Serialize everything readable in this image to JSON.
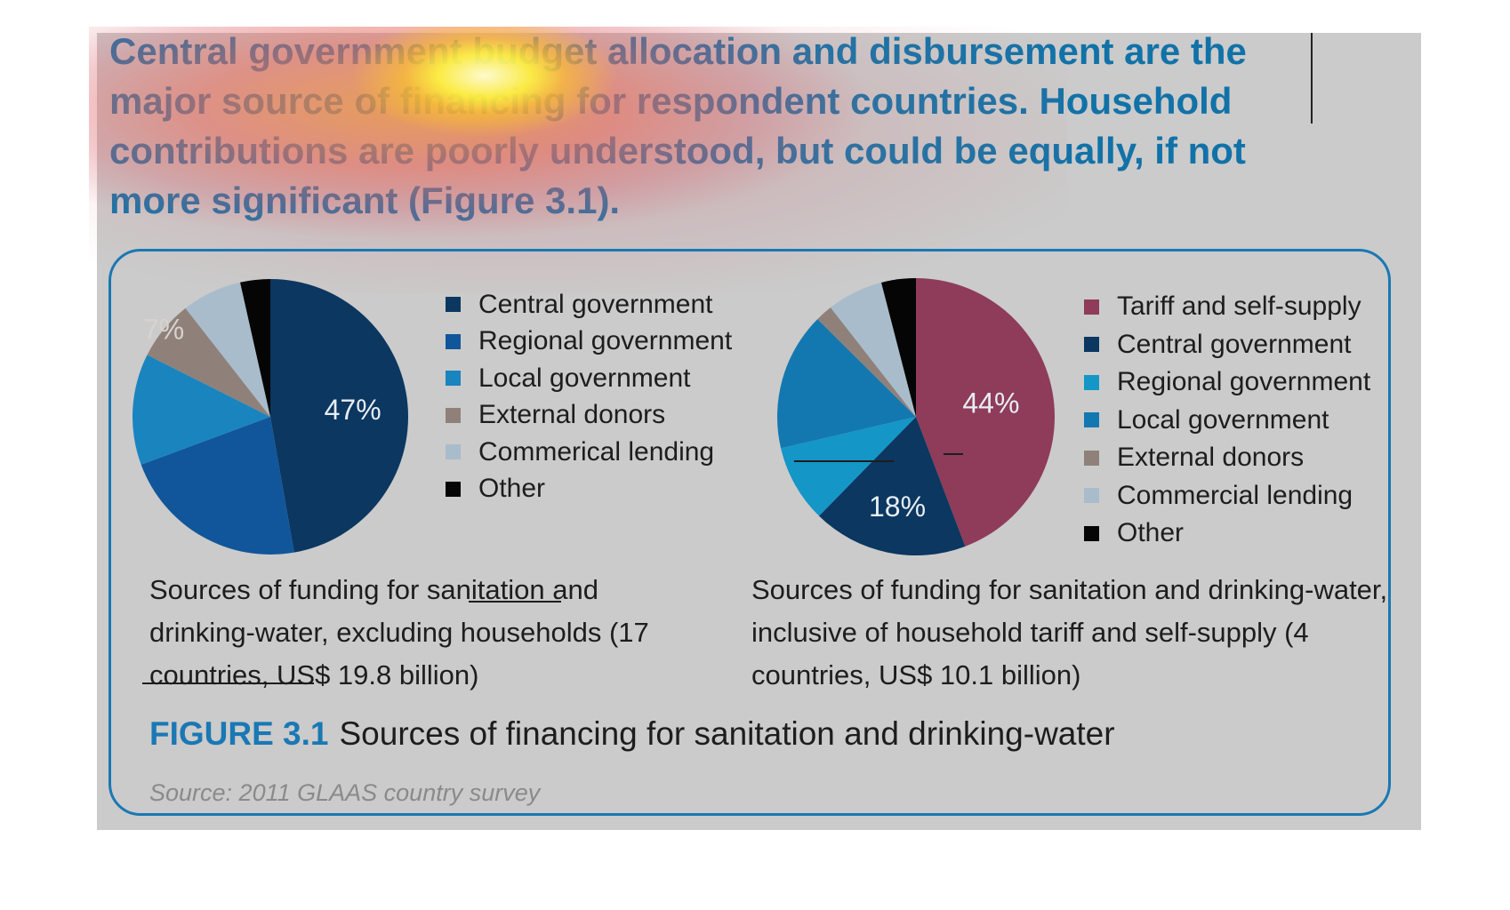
{
  "heading": "Central government budget allocation and disbursement are the major source of financing for respondent countries. Household contributions are poorly understood, but could be equally, if not more significant (Figure 3.1).",
  "colors": {
    "central_left": "#0b3760",
    "regional_left": "#11569a",
    "local_left": "#1a84bf",
    "tariff": "#8e3c59",
    "central_right": "#0b3760",
    "regional_right": "#1496c6",
    "local_right": "#1478b0",
    "external": "#8f817a",
    "commercial": "#a9bccb",
    "other": "#050505",
    "accent": "#1a78b4"
  },
  "chart_data": [
    {
      "type": "pie",
      "caption": "Sources of funding for sanitation and drinking-water, excluding households (17 countries, US$ 19.8 billion)",
      "slices": [
        {
          "label": "Central government",
          "value": 47,
          "value_label": "47%",
          "color": "#0b3760"
        },
        {
          "label": "Regional government",
          "value": 22,
          "value_label": "",
          "color": "#11569a"
        },
        {
          "label": "Local government",
          "value": 13,
          "value_label": "",
          "color": "#1a84bf"
        },
        {
          "label": "External donors",
          "value": 7,
          "value_label": "7%",
          "color": "#8f817a"
        },
        {
          "label": "Commerical lending",
          "value": 7,
          "value_label": "",
          "color": "#a9bccb"
        },
        {
          "label": "Other",
          "value": 3.5,
          "value_label": "",
          "color": "#050505"
        }
      ]
    },
    {
      "type": "pie",
      "caption": "Sources of funding for sanitation and drinking-water, inclusive of household tariff and self-supply (4 countries, US$ 10.1 billion)",
      "slices": [
        {
          "label": "Tariff and self-supply",
          "value": 44,
          "value_label": "44%",
          "color": "#8e3c59"
        },
        {
          "label": "Central government",
          "value": 18,
          "value_label": "18%",
          "color": "#0b3760"
        },
        {
          "label": "Regional government",
          "value": 9,
          "value_label": "",
          "color": "#1496c6"
        },
        {
          "label": "Local government",
          "value": 16,
          "value_label": "",
          "color": "#1478b0"
        },
        {
          "label": "External donors",
          "value": 2,
          "value_label": "",
          "color": "#8f817a"
        },
        {
          "label": "Commercial lending",
          "value": 6.5,
          "value_label": "",
          "color": "#a9bccb"
        },
        {
          "label": "Other",
          "value": 4,
          "value_label": "",
          "color": "#050505"
        }
      ]
    }
  ],
  "figure": {
    "label": "FIGURE 3.1",
    "title": "Sources of financing for sanitation and drinking-water",
    "source": "Source: 2011 GLAAS country survey"
  }
}
